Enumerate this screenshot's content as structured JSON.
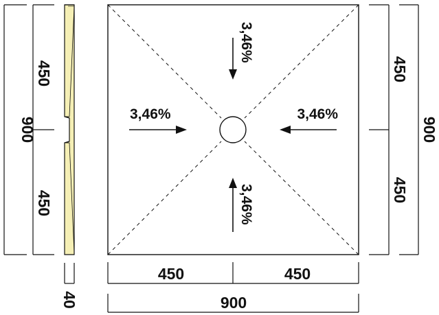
{
  "drawing": {
    "outer_width": "900",
    "outer_height": "900",
    "half_top": "450",
    "half_bottom": "450",
    "half_left": "450",
    "half_right": "450",
    "thickness": "40",
    "right_half_top": "450",
    "right_half_bottom": "450",
    "right_total": "900",
    "slope_top": "3,46%",
    "slope_left": "3,46%",
    "slope_right": "3,46%",
    "slope_bottom": "3,46%"
  },
  "colors": {
    "line": "#111111",
    "section_fill": "#f5efb5"
  }
}
